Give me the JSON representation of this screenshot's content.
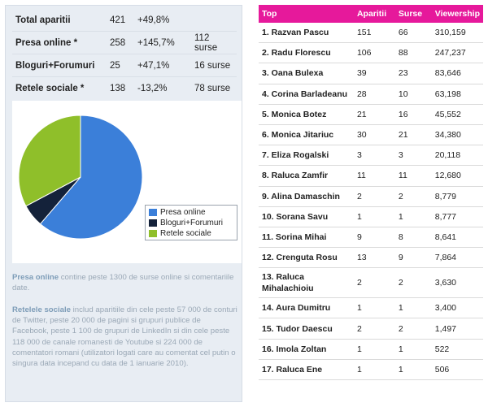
{
  "summary": [
    {
      "label": "Total aparitii",
      "count": "421",
      "change": "+49,8%",
      "sources": ""
    },
    {
      "label": "Presa online *",
      "count": "258",
      "change": "+145,7%",
      "sources": "112 surse"
    },
    {
      "label": "Bloguri+Forumuri",
      "count": "25",
      "change": "+47,1%",
      "sources": "16 surse"
    },
    {
      "label": "Retele sociale *",
      "count": "138",
      "change": "-13,2%",
      "sources": "78 surse"
    }
  ],
  "chart_data": {
    "type": "pie",
    "slices": [
      {
        "label": "Presa online",
        "value": 258,
        "color": "#3b7fd9"
      },
      {
        "label": "Bloguri+Forumuri",
        "value": 25,
        "color": "#14223a"
      },
      {
        "label": "Retele sociale",
        "value": 138,
        "color": "#8fbf2a"
      }
    ],
    "legend": "inside-right"
  },
  "notes": {
    "presa_title": "Presa online",
    "presa_text": " contine peste 1300 de surse online si comentariile date.",
    "retele_title": "Retelele sociale",
    "retele_text": " includ aparitiile din cele peste 57 000 de conturi de Twitter, peste 20 000 de pagini si grupuri publice de Facebook,  peste 1 100 de grupuri de LinkedIn si din cele peste 118 000 de canale romanesti de Youtube si 224 000 de comentatori romani (utilizatori logati care au comentat cel putin o singura data incepand cu data de 1 ianuarie 2010)."
  },
  "ranking": {
    "headers": [
      "Top",
      "Aparitii",
      "Surse",
      "Viewership"
    ],
    "rows": [
      {
        "name": "1. Razvan Pascu",
        "aparitii": "151",
        "surse": "66",
        "viewership": "310,159"
      },
      {
        "name": "2. Radu Florescu",
        "aparitii": "106",
        "surse": "88",
        "viewership": "247,237"
      },
      {
        "name": "3. Oana Bulexa",
        "aparitii": "39",
        "surse": "23",
        "viewership": "83,646"
      },
      {
        "name": "4. Corina Barladeanu",
        "aparitii": "28",
        "surse": "10",
        "viewership": "63,198"
      },
      {
        "name": "5. Monica Botez",
        "aparitii": "21",
        "surse": "16",
        "viewership": "45,552"
      },
      {
        "name": "6. Monica Jitariuc",
        "aparitii": "30",
        "surse": "21",
        "viewership": "34,380"
      },
      {
        "name": "7. Eliza Rogalski",
        "aparitii": "3",
        "surse": "3",
        "viewership": "20,118"
      },
      {
        "name": "8. Raluca Zamfir",
        "aparitii": "11",
        "surse": "11",
        "viewership": "12,680"
      },
      {
        "name": "9. Alina Damaschin",
        "aparitii": "2",
        "surse": "2",
        "viewership": "8,779"
      },
      {
        "name": "10. Sorana Savu",
        "aparitii": "1",
        "surse": "1",
        "viewership": "8,777"
      },
      {
        "name": "11. Sorina Mihai",
        "aparitii": "9",
        "surse": "8",
        "viewership": "8,641"
      },
      {
        "name": "12. Crenguta Rosu",
        "aparitii": "13",
        "surse": "9",
        "viewership": "7,864"
      },
      {
        "name": "13. Raluca Mihalachioiu",
        "aparitii": "2",
        "surse": "2",
        "viewership": "3,630"
      },
      {
        "name": "14. Aura Dumitru",
        "aparitii": "1",
        "surse": "1",
        "viewership": "3,400"
      },
      {
        "name": "15. Tudor Daescu",
        "aparitii": "2",
        "surse": "2",
        "viewership": "1,497"
      },
      {
        "name": "16. Imola Zoltan",
        "aparitii": "1",
        "surse": "1",
        "viewership": "522"
      },
      {
        "name": "17. Raluca Ene",
        "aparitii": "1",
        "surse": "1",
        "viewership": "506"
      }
    ]
  }
}
